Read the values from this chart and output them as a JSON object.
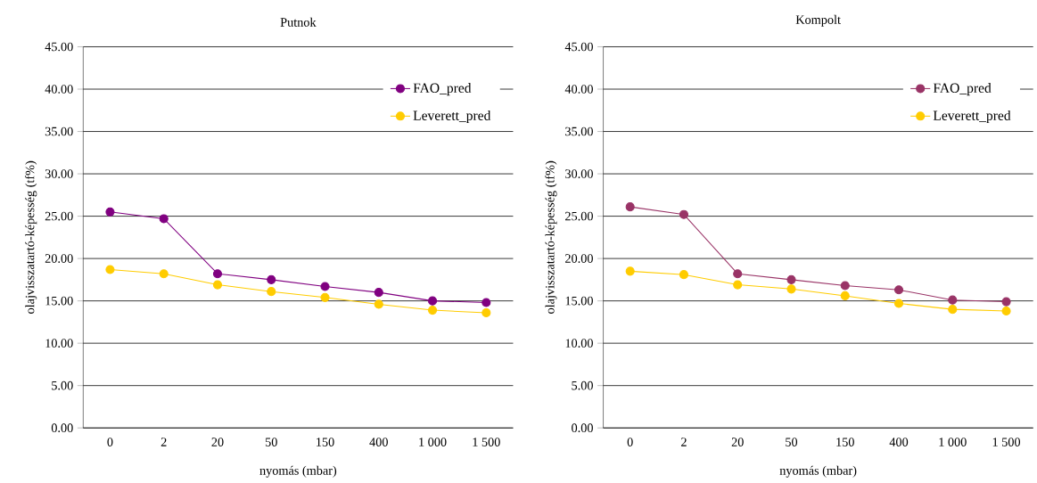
{
  "chart_data": [
    {
      "type": "line",
      "title": "Putnok",
      "xlabel": "nyomás (mbar)",
      "ylabel": "olajvisszatartó-képesség (tf%)",
      "categories": [
        "0",
        "2",
        "20",
        "50",
        "150",
        "400",
        "1 000",
        "1 500"
      ],
      "series": [
        {
          "name": "FAO_pred",
          "color": "#800080",
          "values": [
            25.5,
            24.7,
            18.2,
            17.5,
            16.7,
            16.0,
            15.0,
            14.8
          ]
        },
        {
          "name": "Leverett_pred",
          "color": "#ffcc00",
          "values": [
            18.7,
            18.2,
            16.9,
            16.1,
            15.4,
            14.6,
            13.9,
            13.6
          ]
        }
      ],
      "ylim": [
        0,
        45
      ],
      "yticks": [
        {
          "value": 0,
          "label": "0.00"
        },
        {
          "value": 5,
          "label": "5.00"
        },
        {
          "value": 10,
          "label": "10.00"
        },
        {
          "value": 15,
          "label": "15.00"
        },
        {
          "value": 20,
          "label": "20.00"
        },
        {
          "value": 25,
          "label": "25.00"
        },
        {
          "value": 30,
          "label": "30.00"
        },
        {
          "value": 35,
          "label": "35.00"
        },
        {
          "value": 40,
          "label": "40.00"
        },
        {
          "value": 45,
          "label": "45.00"
        }
      ],
      "grid": "y",
      "legend": "top right",
      "marker": "circle"
    },
    {
      "type": "line",
      "title": "Kompolt",
      "xlabel": "nyomás (mbar)",
      "ylabel": "olajvisszatartó-képesség (tf%)",
      "categories": [
        "0",
        "2",
        "20",
        "50",
        "150",
        "400",
        "1 000",
        "1 500"
      ],
      "series": [
        {
          "name": "FAO_pred",
          "color": "#993366",
          "values": [
            26.1,
            25.2,
            18.2,
            17.5,
            16.8,
            16.3,
            15.1,
            14.9
          ]
        },
        {
          "name": "Leverett_pred",
          "color": "#ffcc00",
          "values": [
            18.5,
            18.1,
            16.9,
            16.4,
            15.6,
            14.7,
            14.0,
            13.8
          ]
        }
      ],
      "ylim": [
        0,
        45
      ],
      "yticks": [
        {
          "value": 0,
          "label": "0.00"
        },
        {
          "value": 5,
          "label": "5.00"
        },
        {
          "value": 10,
          "label": "10.00"
        },
        {
          "value": 15,
          "label": "15.00"
        },
        {
          "value": 20,
          "label": "20.00"
        },
        {
          "value": 25,
          "label": "25.00"
        },
        {
          "value": 30,
          "label": "30.00"
        },
        {
          "value": 35,
          "label": "35.00"
        },
        {
          "value": 40,
          "label": "40.00"
        },
        {
          "value": 45,
          "label": "45.00"
        }
      ],
      "grid": "y",
      "legend": "top right",
      "marker": "circle"
    }
  ]
}
